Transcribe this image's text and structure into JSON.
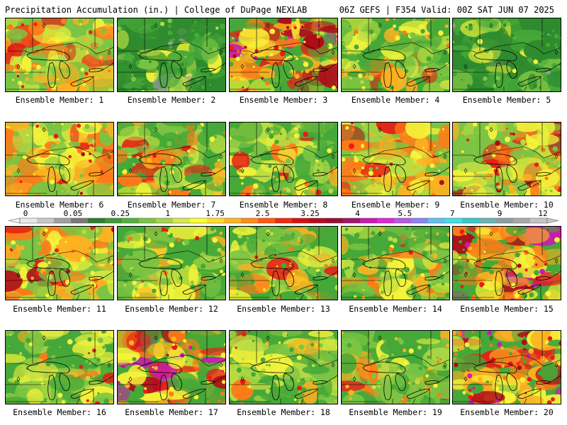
{
  "header": {
    "title_left": "Precipitation Accumulation (in.) | College of DuPage NEXLAB",
    "title_right": "06Z GEFS | F354 Valid: 00Z SAT JUN 07 2025"
  },
  "members": [
    {
      "label": "Ensemble Member: 1",
      "scheme": "wet"
    },
    {
      "label": "Ensemble Member: 2",
      "scheme": "dry"
    },
    {
      "label": "Ensemble Member: 3",
      "scheme": "heavy"
    },
    {
      "label": "Ensemble Member: 4",
      "scheme": "mixed"
    },
    {
      "label": "Ensemble Member: 5",
      "scheme": "dry"
    },
    {
      "label": "Ensemble Member: 6",
      "scheme": "wet"
    },
    {
      "label": "Ensemble Member: 7",
      "scheme": "mixed"
    },
    {
      "label": "Ensemble Member: 8",
      "scheme": "mixed"
    },
    {
      "label": "Ensemble Member: 9",
      "scheme": "wet"
    },
    {
      "label": "Ensemble Member: 10",
      "scheme": "wet"
    },
    {
      "label": "Ensemble Member: 11",
      "scheme": "wet"
    },
    {
      "label": "Ensemble Member: 12",
      "scheme": "mixed"
    },
    {
      "label": "Ensemble Member: 13",
      "scheme": "mixed"
    },
    {
      "label": "Ensemble Member: 14",
      "scheme": "mixed"
    },
    {
      "label": "Ensemble Member: 15",
      "scheme": "heavy"
    },
    {
      "label": "Ensemble Member: 16",
      "scheme": "mixed"
    },
    {
      "label": "Ensemble Member: 17",
      "scheme": "heavy"
    },
    {
      "label": "Ensemble Member: 18",
      "scheme": "mixed"
    },
    {
      "label": "Ensemble Member: 19",
      "scheme": "mixed"
    },
    {
      "label": "Ensemble Member: 20",
      "scheme": "heavy"
    }
  ],
  "colorbar": {
    "labels": [
      "0",
      "0.05",
      "0.25",
      "1",
      "1.75",
      "2.5",
      "3.25",
      "4",
      "5.5",
      "7",
      "9",
      "12"
    ],
    "colors": [
      "#e8e8e8",
      "#c8c8c8",
      "#a0a0a0",
      "#7a7a7a",
      "#2e7d2e",
      "#3e9a36",
      "#55b03d",
      "#7cc443",
      "#a7d44a",
      "#d7e84a",
      "#ffff33",
      "#ffdc2a",
      "#ffb522",
      "#ff8c1a",
      "#ff5a14",
      "#f02a12",
      "#d61010",
      "#b50d1e",
      "#951030",
      "#a0166e",
      "#c81cb0",
      "#e028d8",
      "#b75ae0",
      "#8a86ee",
      "#60c0f2",
      "#45dcea",
      "#39c8c8",
      "#6ab4b4",
      "#8aa0a0",
      "#a8a8a8",
      "#c4c4c4"
    ]
  },
  "palette": {
    "darkgreen": "#2e8b2e",
    "green": "#46a838",
    "lightgreen": "#7cc443",
    "yellowgreen": "#b8dc44",
    "yellow": "#f4f43a",
    "orange": "#ffb020",
    "darkorange": "#ff7a18",
    "red": "#e81c14",
    "darkred": "#b00c18",
    "magenta": "#c81cb0",
    "gray": "#9a9a9a",
    "white": "#f0f0f0"
  }
}
